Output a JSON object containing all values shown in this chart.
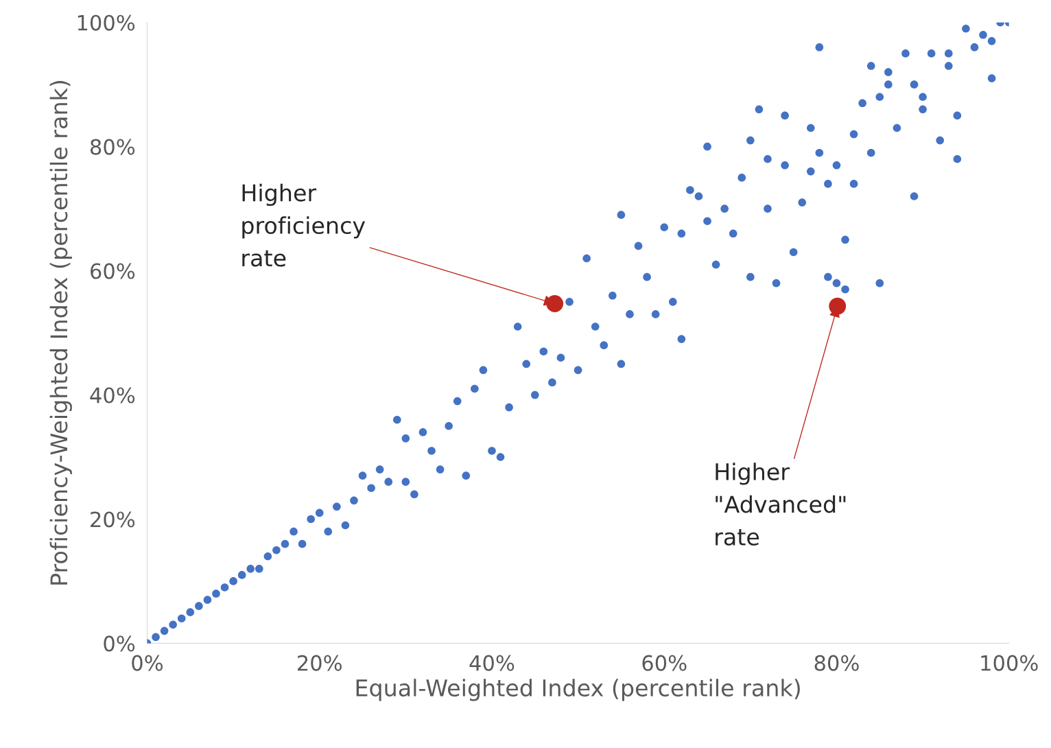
{
  "chart_data": {
    "type": "scatter",
    "xlabel": "Equal-Weighted Index (percentile rank)",
    "ylabel": "Proficiency-Weighted Index (percentile rank)",
    "xlim": [
      0,
      100
    ],
    "ylim": [
      0,
      100
    ],
    "xticks": [
      {
        "value": 0,
        "label": "0%"
      },
      {
        "value": 20,
        "label": "20%"
      },
      {
        "value": 40,
        "label": "40%"
      },
      {
        "value": 60,
        "label": "60%"
      },
      {
        "value": 80,
        "label": "80%"
      },
      {
        "value": 100,
        "label": "100%"
      }
    ],
    "yticks": [
      {
        "value": 0,
        "label": "0%"
      },
      {
        "value": 20,
        "label": "20%"
      },
      {
        "value": 40,
        "label": "40%"
      },
      {
        "value": 60,
        "label": "60%"
      },
      {
        "value": 80,
        "label": "80%"
      },
      {
        "value": 100,
        "label": "100%"
      }
    ],
    "grid": false,
    "legend": false,
    "marker": "circle",
    "series": [
      {
        "color": "#4472c4",
        "x": [
          0,
          1,
          2,
          3,
          4,
          5,
          6,
          7,
          8,
          9,
          10,
          11,
          12,
          13,
          14,
          15,
          16,
          17,
          18,
          19,
          20,
          21,
          22,
          23,
          24,
          25,
          26,
          27,
          28,
          29,
          30,
          30,
          31,
          32,
          33,
          34,
          35,
          36,
          37,
          38,
          39,
          40,
          41,
          42,
          43,
          44,
          45,
          46,
          47,
          48,
          49,
          50,
          51,
          52,
          53,
          54,
          55,
          55,
          56,
          57,
          58,
          59,
          60,
          61,
          62,
          62,
          63,
          64,
          65,
          65,
          66,
          67,
          68,
          69,
          70,
          70,
          71,
          72,
          72,
          73,
          74,
          74,
          75,
          76,
          77,
          77,
          78,
          78,
          79,
          79,
          80,
          80,
          81,
          81,
          82,
          82,
          83,
          84,
          84,
          85,
          85,
          86,
          87,
          88,
          89,
          89,
          90,
          91,
          92,
          93,
          94,
          94,
          95,
          96,
          97,
          98,
          98,
          99,
          100,
          93,
          90,
          86
        ],
        "values": [
          0,
          1,
          2,
          3,
          4,
          5,
          6,
          7,
          8,
          9,
          10,
          11,
          12,
          12,
          14,
          15,
          16,
          18,
          16,
          20,
          21,
          18,
          22,
          19,
          23,
          27,
          25,
          28,
          26,
          36,
          33,
          26,
          24,
          34,
          31,
          28,
          35,
          39,
          27,
          41,
          44,
          31,
          30,
          38,
          51,
          45,
          40,
          47,
          42,
          46,
          55,
          44,
          62,
          51,
          48,
          56,
          69,
          45,
          53,
          64,
          59,
          53,
          67,
          55,
          49,
          66,
          73,
          72,
          80,
          68,
          61,
          70,
          66,
          75,
          59,
          81,
          86,
          78,
          70,
          58,
          85,
          77,
          63,
          71,
          83,
          76,
          79,
          96,
          74,
          59,
          77,
          58,
          65,
          57,
          82,
          74,
          87,
          79,
          93,
          58,
          88,
          90,
          83,
          95,
          72,
          90,
          86,
          95,
          81,
          95,
          78,
          85,
          99,
          96,
          98,
          91,
          97,
          100,
          100,
          93,
          88,
          92
        ]
      },
      {
        "color": "#c0281f",
        "x": [
          47.3,
          80.1
        ],
        "values": [
          54.7,
          54.3
        ]
      }
    ],
    "annotations": [
      {
        "text": "Higher\nproficiency\nrate",
        "x": 47.3,
        "y": 54.7
      },
      {
        "text": "Higher\n\"Advanced\"\nrate",
        "x": 80.1,
        "y": 54.3
      }
    ]
  }
}
